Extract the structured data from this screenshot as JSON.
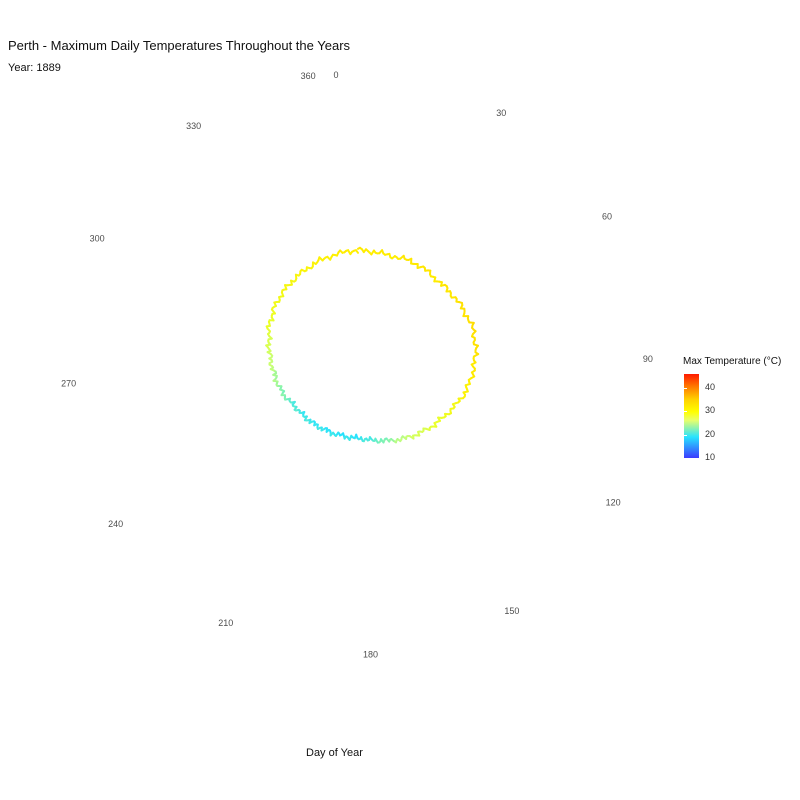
{
  "chart_data": {
    "type": "line",
    "coordinate_system": "polar",
    "title": "Perth - Maximum Daily Temperatures Throughout the Years",
    "subtitle": "Year: 1889",
    "xlabel": "Day of Year",
    "ylabel": "",
    "x_ticks": [
      "0",
      "30",
      "60",
      "90",
      "120",
      "150",
      "180",
      "210",
      "240",
      "270",
      "300",
      "330",
      "360"
    ],
    "x_range": [
      0,
      365
    ],
    "y_range": [
      0,
      48
    ],
    "grid": false,
    "legend": {
      "title": "Max Temperature (°C)",
      "placement": "right",
      "ticks": [
        "10",
        "20",
        "30",
        "40"
      ],
      "range": [
        10,
        46
      ]
    },
    "series": [
      {
        "x": [
          0,
          15,
          30,
          45,
          60,
          75,
          90,
          105,
          120,
          135,
          150,
          165,
          180,
          195,
          210,
          225,
          240,
          255,
          270,
          285,
          300,
          315,
          330,
          345,
          365
        ],
        "values": [
          30.5,
          30.2,
          31.0,
          30.8,
          31.5,
          32.0,
          31.0,
          29.5,
          27.0,
          25.0,
          23.0,
          21.0,
          19.5,
          19.2,
          19.3,
          19.6,
          20.0,
          21.5,
          22.5,
          24.0,
          26.0,
          27.5,
          28.5,
          29.5,
          30.5
        ]
      }
    ]
  }
}
